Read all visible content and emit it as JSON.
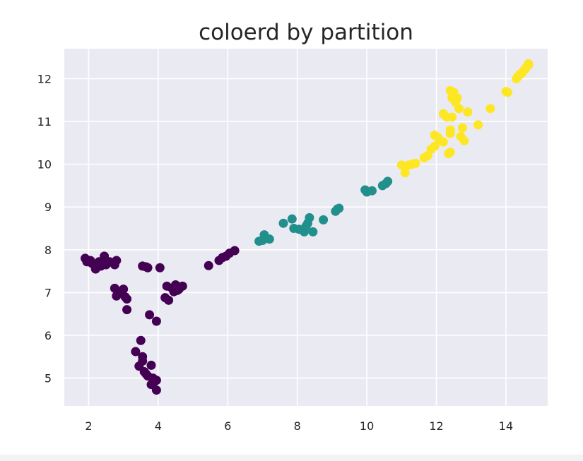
{
  "chart_data": {
    "type": "scatter",
    "title": "coloerd by partition",
    "xlabel": "",
    "ylabel": "",
    "xlim": [
      1.3,
      15.2
    ],
    "ylim": [
      4.35,
      12.7
    ],
    "xticks": [
      2,
      4,
      6,
      8,
      10,
      12,
      14
    ],
    "yticks": [
      5,
      6,
      7,
      8,
      9,
      10,
      11,
      12
    ],
    "grid": true,
    "legend": "none",
    "background": "#eaeaf2",
    "grid_color": "#ffffff",
    "series": [
      {
        "color": "#440154",
        "points": [
          [
            1.9,
            7.8
          ],
          [
            1.95,
            7.72
          ],
          [
            2.05,
            7.75
          ],
          [
            2.1,
            7.68
          ],
          [
            2.2,
            7.55
          ],
          [
            2.3,
            7.72
          ],
          [
            2.35,
            7.62
          ],
          [
            2.45,
            7.85
          ],
          [
            2.5,
            7.65
          ],
          [
            2.6,
            7.72
          ],
          [
            2.75,
            7.65
          ],
          [
            2.8,
            7.75
          ],
          [
            2.75,
            7.1
          ],
          [
            2.8,
            6.92
          ],
          [
            2.9,
            7.0
          ],
          [
            3.0,
            7.08
          ],
          [
            3.05,
            6.9
          ],
          [
            3.1,
            6.85
          ],
          [
            3.1,
            6.6
          ],
          [
            3.55,
            7.62
          ],
          [
            3.65,
            7.6
          ],
          [
            3.7,
            7.58
          ],
          [
            4.05,
            7.58
          ],
          [
            3.75,
            6.48
          ],
          [
            3.95,
            6.33
          ],
          [
            4.2,
            6.88
          ],
          [
            4.25,
            7.15
          ],
          [
            4.3,
            6.82
          ],
          [
            4.4,
            7.1
          ],
          [
            4.45,
            7.02
          ],
          [
            4.5,
            7.18
          ],
          [
            4.55,
            7.05
          ],
          [
            4.6,
            7.08
          ],
          [
            4.7,
            7.15
          ],
          [
            3.35,
            5.62
          ],
          [
            3.45,
            5.28
          ],
          [
            3.5,
            5.88
          ],
          [
            3.55,
            5.4
          ],
          [
            3.55,
            5.5
          ],
          [
            3.6,
            5.15
          ],
          [
            3.65,
            5.1
          ],
          [
            3.7,
            5.05
          ],
          [
            3.8,
            5.3
          ],
          [
            3.8,
            4.85
          ],
          [
            3.85,
            5.0
          ],
          [
            3.9,
            4.92
          ],
          [
            3.95,
            4.95
          ],
          [
            3.95,
            4.72
          ],
          [
            5.45,
            7.63
          ],
          [
            5.75,
            7.75
          ],
          [
            5.85,
            7.82
          ],
          [
            5.95,
            7.85
          ],
          [
            6.05,
            7.92
          ],
          [
            6.2,
            7.98
          ]
        ]
      },
      {
        "color": "#21908d",
        "points": [
          [
            6.9,
            8.2
          ],
          [
            7.0,
            8.22
          ],
          [
            7.05,
            8.35
          ],
          [
            7.2,
            8.25
          ],
          [
            7.6,
            8.62
          ],
          [
            7.85,
            8.72
          ],
          [
            7.9,
            8.5
          ],
          [
            8.05,
            8.48
          ],
          [
            8.2,
            8.42
          ],
          [
            8.25,
            8.55
          ],
          [
            8.3,
            8.62
          ],
          [
            8.35,
            8.75
          ],
          [
            8.45,
            8.42
          ],
          [
            8.75,
            8.7
          ],
          [
            9.1,
            8.9
          ],
          [
            9.15,
            8.95
          ],
          [
            9.2,
            8.97
          ],
          [
            9.95,
            9.4
          ],
          [
            10.0,
            9.35
          ],
          [
            10.15,
            9.38
          ],
          [
            10.45,
            9.5
          ],
          [
            10.55,
            9.55
          ],
          [
            10.6,
            9.6
          ]
        ]
      },
      {
        "color": "#fde725",
        "points": [
          [
            11.0,
            9.98
          ],
          [
            11.1,
            9.8
          ],
          [
            11.2,
            9.98
          ],
          [
            11.3,
            10.0
          ],
          [
            11.4,
            10.02
          ],
          [
            11.65,
            10.15
          ],
          [
            11.75,
            10.2
          ],
          [
            11.85,
            10.35
          ],
          [
            11.95,
            10.42
          ],
          [
            11.95,
            10.68
          ],
          [
            12.05,
            10.62
          ],
          [
            12.1,
            10.55
          ],
          [
            12.2,
            10.52
          ],
          [
            12.2,
            11.18
          ],
          [
            12.3,
            11.1
          ],
          [
            12.35,
            10.25
          ],
          [
            12.4,
            10.28
          ],
          [
            12.4,
            10.72
          ],
          [
            12.4,
            10.8
          ],
          [
            12.45,
            11.1
          ],
          [
            12.45,
            11.55
          ],
          [
            12.4,
            11.72
          ],
          [
            12.5,
            11.68
          ],
          [
            12.55,
            11.45
          ],
          [
            12.6,
            11.55
          ],
          [
            12.65,
            11.3
          ],
          [
            12.7,
            10.65
          ],
          [
            12.75,
            10.85
          ],
          [
            12.8,
            10.55
          ],
          [
            12.9,
            11.22
          ],
          [
            13.2,
            10.92
          ],
          [
            13.55,
            11.3
          ],
          [
            14.0,
            11.7
          ],
          [
            14.05,
            11.68
          ],
          [
            14.3,
            12.0
          ],
          [
            14.35,
            12.05
          ],
          [
            14.4,
            12.1
          ],
          [
            14.45,
            12.12
          ],
          [
            14.5,
            12.18
          ],
          [
            14.55,
            12.22
          ],
          [
            14.6,
            12.28
          ],
          [
            14.65,
            12.32
          ],
          [
            14.65,
            12.35
          ]
        ]
      }
    ]
  }
}
